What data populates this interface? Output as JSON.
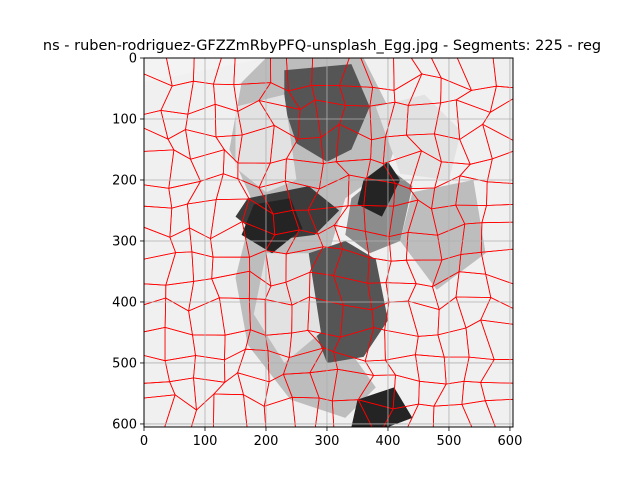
{
  "chart_data": {
    "type": "image",
    "title": "ns - ruben-rodriguez-GFZZmRbyPFQ-unsplash_Egg.jpg - Segments: 225 - reg",
    "segments": 225,
    "image_size": [
      605,
      605
    ],
    "xlim": [
      0,
      605
    ],
    "ylim": [
      605,
      0
    ],
    "x_ticks": [
      0,
      100,
      200,
      300,
      400,
      500,
      600
    ],
    "y_ticks": [
      0,
      100,
      200,
      300,
      400,
      500,
      600
    ],
    "grid": true,
    "boundary_color": "#ff0000",
    "palette": {
      "white": "#f6f6f6",
      "light": "#e2e2e2",
      "mid": "#bdbdbd",
      "gray": "#8c8c8c",
      "dark": "#555555",
      "darker": "#3c3c3c",
      "black": "#242424"
    }
  }
}
